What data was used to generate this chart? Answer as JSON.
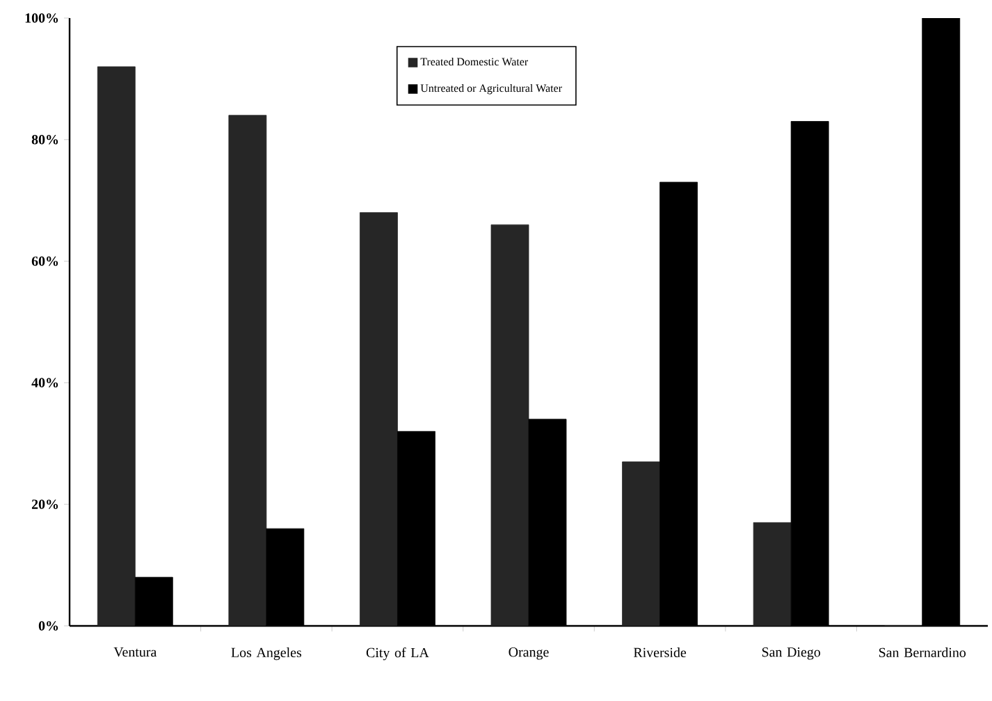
{
  "chart_data": {
    "type": "bar",
    "categories": [
      "Ventura",
      "Los Angeles",
      "City of LA",
      "Orange",
      "Riverside",
      "San Diego",
      "San Bernardino"
    ],
    "series": [
      {
        "name": "Treated Domestic Water",
        "color": "#262626",
        "values": [
          92,
          84,
          68,
          66,
          27,
          17,
          0
        ]
      },
      {
        "name": "Untreated or Agricultural Water",
        "color": "#000000",
        "values": [
          8,
          16,
          32,
          34,
          73,
          83,
          100
        ]
      }
    ],
    "ylim": [
      0,
      100
    ],
    "yticks": [
      {
        "value": 0,
        "label": "0%"
      },
      {
        "value": 20,
        "label": "20%"
      },
      {
        "value": 40,
        "label": "40%"
      },
      {
        "value": 60,
        "label": "60%"
      },
      {
        "value": 80,
        "label": "80%"
      },
      {
        "value": 100,
        "label": "100%"
      }
    ],
    "grid": false,
    "legend": "top"
  }
}
